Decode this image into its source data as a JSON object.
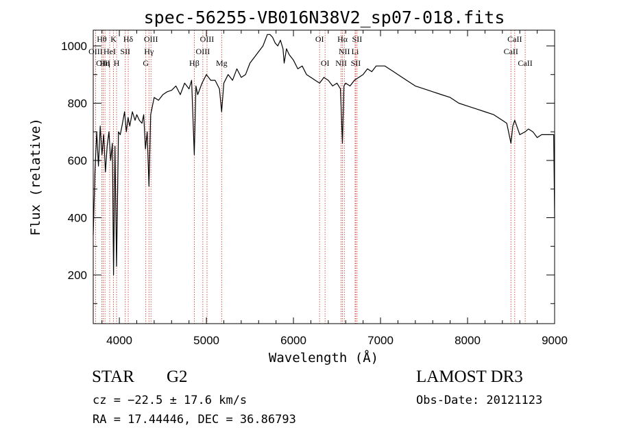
{
  "header": {
    "title": "spec-56255-VB016N38V2_sp07-018.fits"
  },
  "chart_data": {
    "type": "line",
    "title": "spec-56255-VB016N38V2_sp07-018.fits",
    "xlabel": "Wavelength (Å)",
    "ylabel": "Flux (relative)",
    "xlim": [
      3700,
      9000
    ],
    "ylim": [
      30,
      1055
    ],
    "xticks": [
      4000,
      5000,
      6000,
      7000,
      8000,
      9000
    ],
    "yticks": [
      200,
      400,
      600,
      800,
      1000
    ],
    "series": [
      {
        "name": "flux",
        "x": [
          3700,
          3720,
          3740,
          3760,
          3780,
          3800,
          3820,
          3840,
          3860,
          3880,
          3900,
          3920,
          3933,
          3950,
          3968,
          3990,
          4010,
          4030,
          4060,
          4080,
          4100,
          4120,
          4150,
          4180,
          4200,
          4230,
          4260,
          4280,
          4300,
          4320,
          4340,
          4360,
          4380,
          4400,
          4450,
          4500,
          4550,
          4600,
          4650,
          4700,
          4750,
          4800,
          4830,
          4861,
          4880,
          4900,
          4950,
          5000,
          5050,
          5100,
          5150,
          5175,
          5200,
          5250,
          5300,
          5350,
          5400,
          5450,
          5500,
          5550,
          5600,
          5650,
          5700,
          5730,
          5760,
          5790,
          5820,
          5850,
          5880,
          5893,
          5920,
          5950,
          6000,
          6050,
          6100,
          6150,
          6200,
          6250,
          6300,
          6350,
          6400,
          6450,
          6500,
          6540,
          6563,
          6580,
          6600,
          6650,
          6700,
          6750,
          6800,
          6850,
          6900,
          6950,
          7000,
          7050,
          7100,
          7150,
          7200,
          7300,
          7400,
          7500,
          7600,
          7700,
          7800,
          7900,
          8000,
          8100,
          8200,
          8300,
          8400,
          8450,
          8498,
          8520,
          8542,
          8560,
          8600,
          8662,
          8700,
          8750,
          8800,
          8850,
          8900,
          8950,
          8990,
          9000
        ],
        "values": [
          340,
          560,
          700,
          580,
          720,
          620,
          690,
          560,
          650,
          700,
          600,
          660,
          200,
          650,
          230,
          700,
          690,
          720,
          770,
          700,
          750,
          720,
          770,
          740,
          760,
          740,
          730,
          760,
          640,
          700,
          510,
          760,
          790,
          820,
          810,
          830,
          840,
          845,
          860,
          830,
          870,
          850,
          880,
          620,
          860,
          830,
          870,
          900,
          880,
          880,
          850,
          770,
          870,
          900,
          880,
          920,
          890,
          900,
          940,
          960,
          980,
          1000,
          1040,
          1040,
          1030,
          1010,
          1000,
          1020,
          990,
          940,
          990,
          970,
          950,
          920,
          930,
          900,
          890,
          880,
          870,
          890,
          880,
          860,
          870,
          850,
          660,
          860,
          870,
          860,
          880,
          890,
          900,
          920,
          910,
          930,
          930,
          930,
          920,
          910,
          900,
          880,
          860,
          850,
          840,
          830,
          820,
          800,
          790,
          780,
          770,
          760,
          740,
          730,
          660,
          720,
          740,
          725,
          690,
          700,
          710,
          700,
          680,
          690,
          690,
          690,
          690,
          400
        ],
        "color": "#000000"
      }
    ],
    "line_annotations": [
      {
        "label": "Hθ",
        "wavelength": 3798
      },
      {
        "label": "OIII",
        "wavelength": 3727
      },
      {
        "label": "OIII",
        "wavelength": 3814
      },
      {
        "label": "Hη",
        "wavelength": 3835
      },
      {
        "label": "HeI",
        "wavelength": 3889
      },
      {
        "label": "K",
        "wavelength": 3933
      },
      {
        "label": "SII",
        "wavelength": 4068
      },
      {
        "label": "H",
        "wavelength": 3968
      },
      {
        "label": "Hδ",
        "wavelength": 4102
      },
      {
        "label": "OIII",
        "wavelength": 4363
      },
      {
        "label": "Hγ",
        "wavelength": 4340
      },
      {
        "label": "G",
        "wavelength": 4304
      },
      {
        "label": "OIII",
        "wavelength": 5007
      },
      {
        "label": "OIII",
        "wavelength": 4959
      },
      {
        "label": "Hβ",
        "wavelength": 4861
      },
      {
        "label": "Mg",
        "wavelength": 5175
      },
      {
        "label": "OI",
        "wavelength": 6300
      },
      {
        "label": "OI",
        "wavelength": 6363
      },
      {
        "label": "Hα",
        "wavelength": 6563
      },
      {
        "label": "SII",
        "wavelength": 6731
      },
      {
        "label": "NII",
        "wavelength": 6584
      },
      {
        "label": "Li",
        "wavelength": 6708
      },
      {
        "label": "NII",
        "wavelength": 6548
      },
      {
        "label": "SII",
        "wavelength": 6716
      },
      {
        "label": "CaII",
        "wavelength": 8542
      },
      {
        "label": "CaII",
        "wavelength": 8498
      },
      {
        "label": "CaII",
        "wavelength": 8662
      }
    ]
  },
  "info": {
    "object_type": "STAR",
    "subclass": "G2",
    "survey": "LAMOST DR3",
    "cz_text": "cz = −22.5 ± 17.6 km/s",
    "obs_date_text": "Obs-Date: 20121123",
    "radec_text": "RA =  17.44446, DEC =  36.86793"
  }
}
